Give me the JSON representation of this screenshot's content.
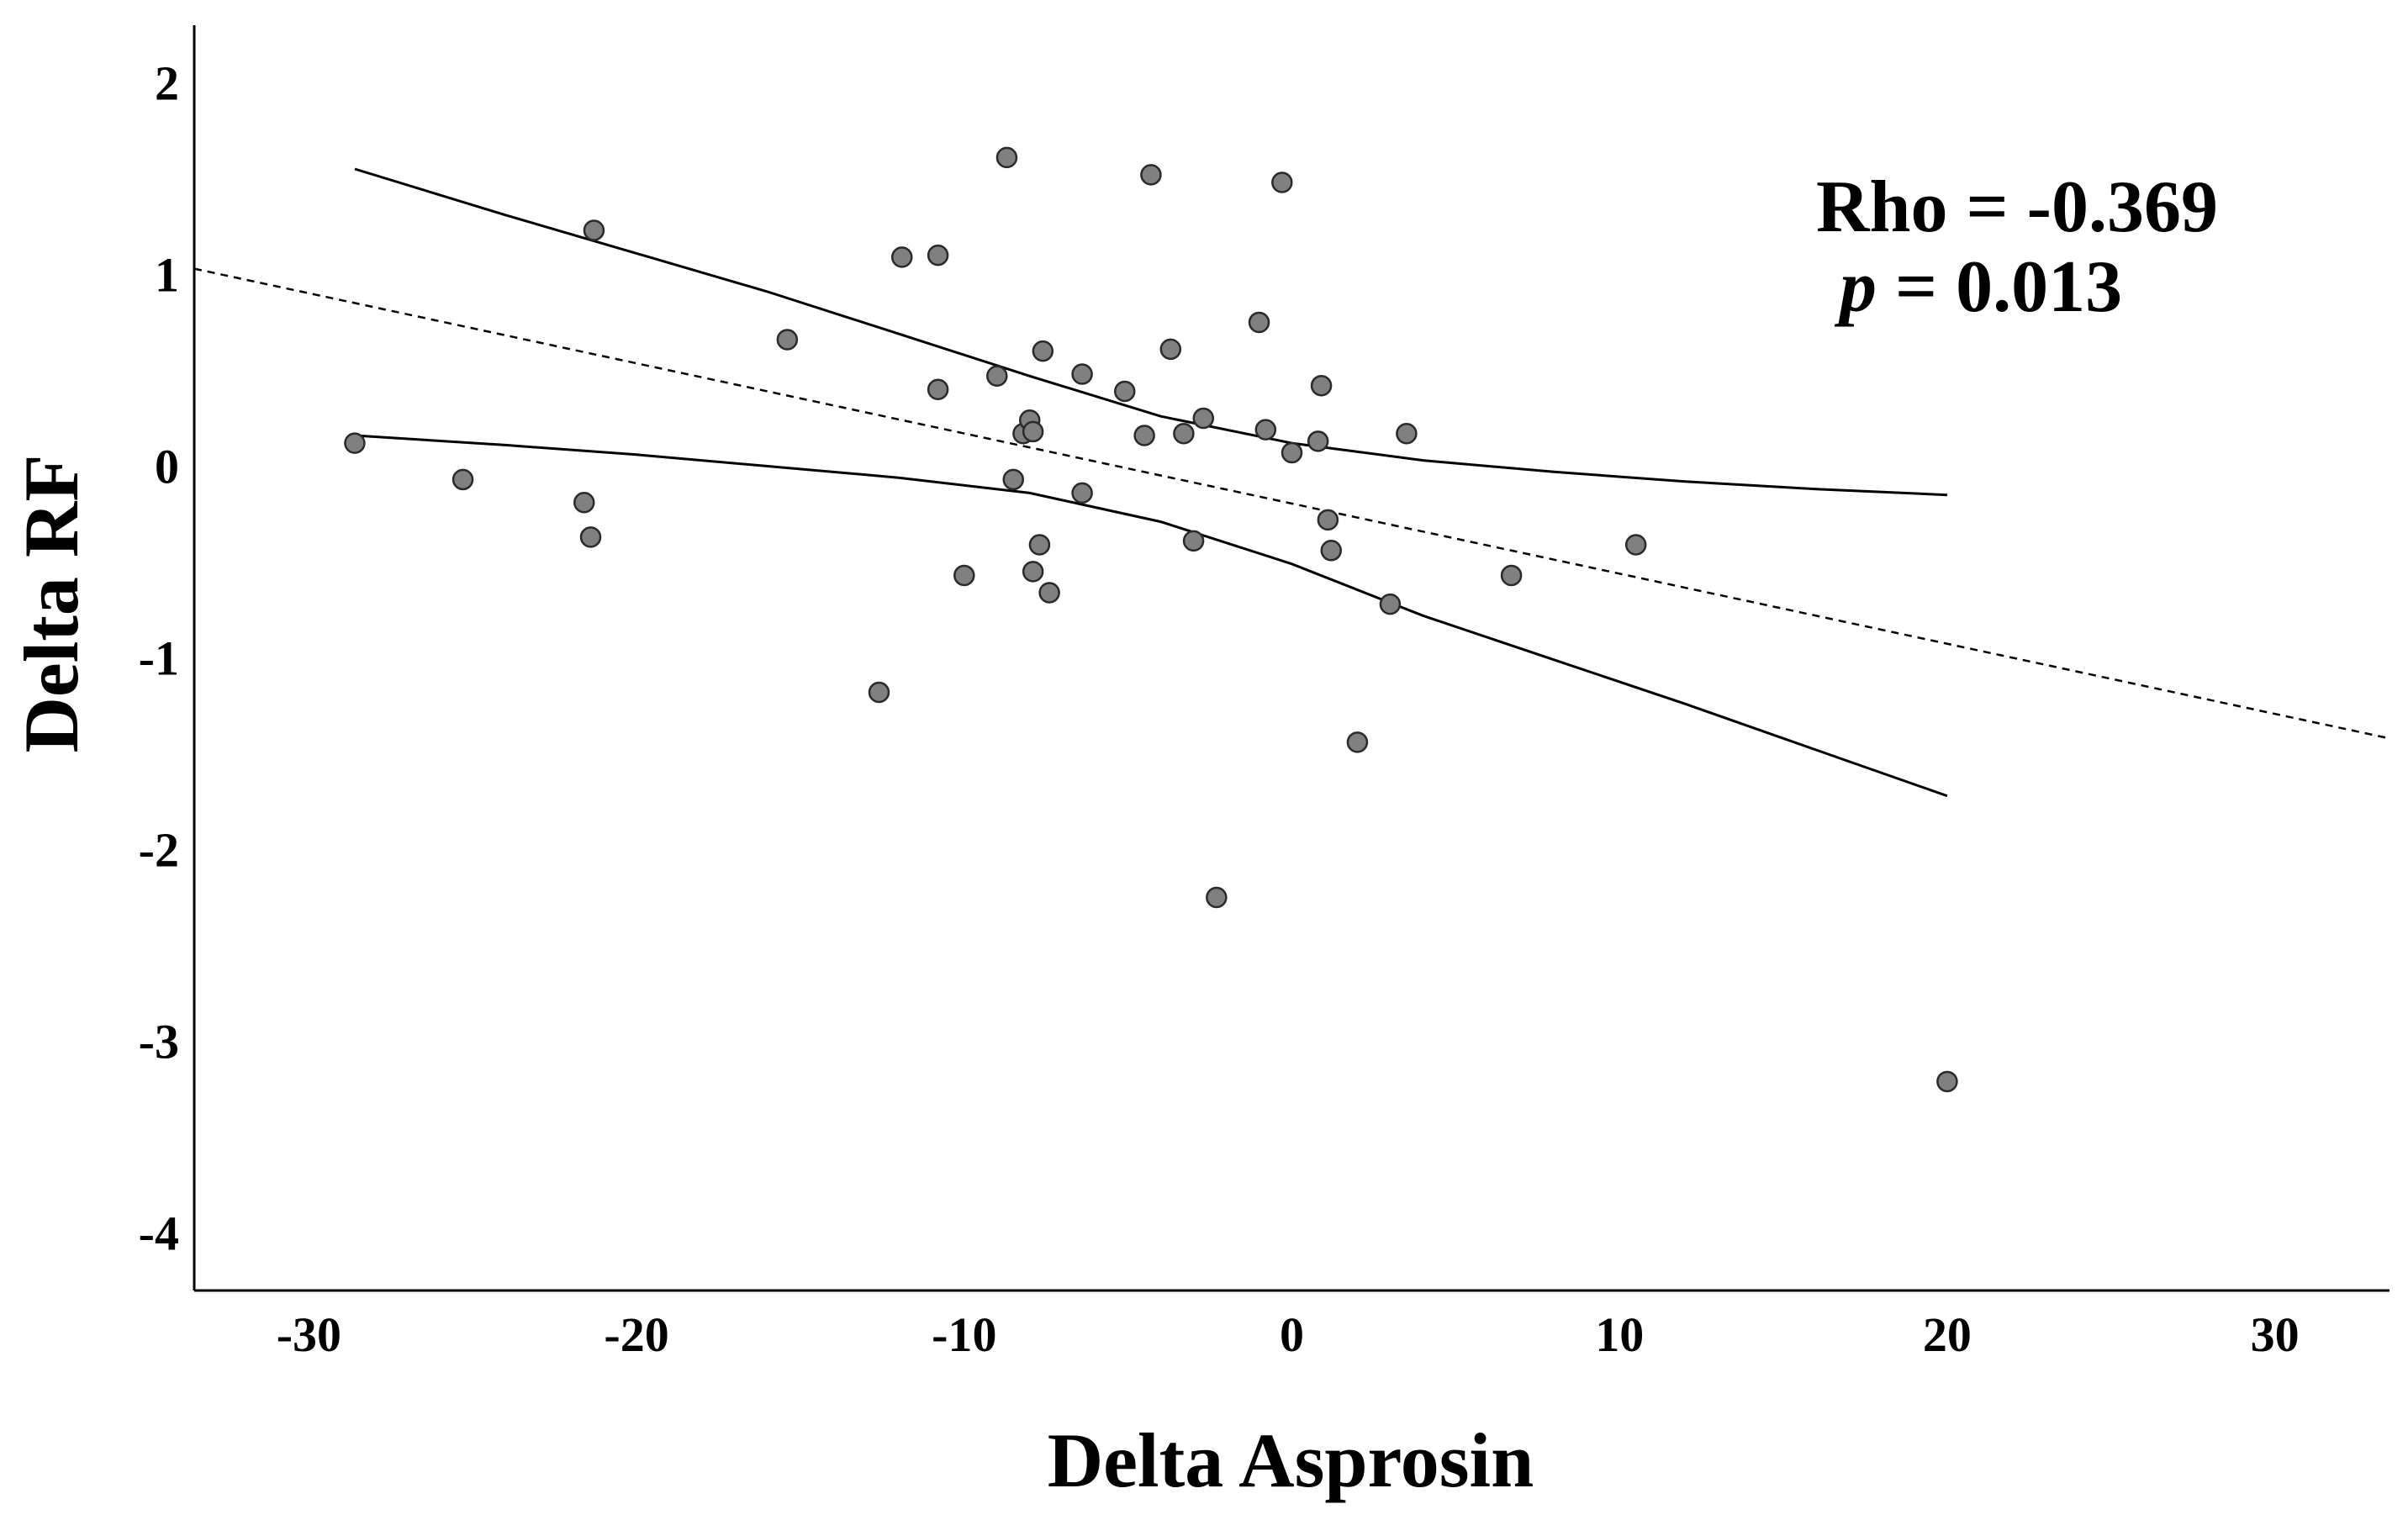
{
  "chart_data": {
    "type": "scatter",
    "title": "",
    "xlabel": "Delta Asprosin",
    "ylabel": "Delta RF",
    "xlim": [
      -33.5,
      33.5
    ],
    "ylim": [
      -4.3,
      2.3
    ],
    "xticks": [
      -30,
      -20,
      -10,
      0,
      10,
      20,
      30
    ],
    "yticks": [
      2,
      1,
      0,
      -1,
      -2,
      -3,
      -4
    ],
    "xtick_labels": [
      "-30",
      "-20",
      "-10",
      "0",
      "10",
      "20",
      "30"
    ],
    "ytick_labels": [
      "2",
      "1",
      "0",
      "-1",
      "-2",
      "-3",
      "-4"
    ],
    "grid": false,
    "legend": "none",
    "colors": {
      "point_fill": "#808080",
      "point_stroke": "#2a2a2a",
      "line": "#000000"
    },
    "annotations": {
      "rho_text": "Rho = -0.369",
      "p_symbol": "p",
      "p_value_text": " = 0.013"
    },
    "points": [
      {
        "x": -28.6,
        "y": 0.12
      },
      {
        "x": -25.3,
        "y": -0.07
      },
      {
        "x": -21.6,
        "y": -0.19
      },
      {
        "x": -21.4,
        "y": -0.37
      },
      {
        "x": -21.3,
        "y": 1.23
      },
      {
        "x": -15.4,
        "y": 0.66
      },
      {
        "x": -12.6,
        "y": -1.18
      },
      {
        "x": -11.9,
        "y": 1.09
      },
      {
        "x": -10.8,
        "y": 1.1
      },
      {
        "x": -10.8,
        "y": 0.4
      },
      {
        "x": -10.0,
        "y": -0.57
      },
      {
        "x": -9.0,
        "y": 0.47
      },
      {
        "x": -8.7,
        "y": 1.61
      },
      {
        "x": -8.5,
        "y": -0.07
      },
      {
        "x": -8.2,
        "y": 0.17
      },
      {
        "x": -8.0,
        "y": 0.24
      },
      {
        "x": -7.9,
        "y": 0.18
      },
      {
        "x": -7.9,
        "y": -0.55
      },
      {
        "x": -7.7,
        "y": -0.41
      },
      {
        "x": -7.6,
        "y": 0.6
      },
      {
        "x": -7.4,
        "y": -0.66
      },
      {
        "x": -6.4,
        "y": -0.14
      },
      {
        "x": -6.4,
        "y": 0.48
      },
      {
        "x": -5.1,
        "y": 0.39
      },
      {
        "x": -4.5,
        "y": 0.16
      },
      {
        "x": -4.3,
        "y": 1.52
      },
      {
        "x": -3.7,
        "y": 0.61
      },
      {
        "x": -3.3,
        "y": 0.17
      },
      {
        "x": -3.0,
        "y": -0.39
      },
      {
        "x": -2.7,
        "y": 0.25
      },
      {
        "x": -2.3,
        "y": -2.25
      },
      {
        "x": -1.0,
        "y": 0.75
      },
      {
        "x": -0.8,
        "y": 0.19
      },
      {
        "x": -0.3,
        "y": 1.48
      },
      {
        "x": 0.0,
        "y": 0.07
      },
      {
        "x": 0.8,
        "y": 0.13
      },
      {
        "x": 0.9,
        "y": 0.42
      },
      {
        "x": 1.1,
        "y": -0.28
      },
      {
        "x": 1.2,
        "y": -0.44
      },
      {
        "x": 2.0,
        "y": -1.44
      },
      {
        "x": 3.0,
        "y": -0.72
      },
      {
        "x": 3.5,
        "y": 0.17
      },
      {
        "x": 6.7,
        "y": -0.57
      },
      {
        "x": 10.5,
        "y": -0.41
      },
      {
        "x": 20.0,
        "y": -3.21
      }
    ],
    "series": [
      {
        "name": "fit",
        "style": "dashed",
        "x": [
          -33.5,
          33.5
        ],
        "y": [
          1.03,
          -1.42
        ]
      },
      {
        "name": "ci-upper",
        "style": "solid",
        "x": [
          -28.6,
          -24,
          -20,
          -16,
          -12,
          -8,
          -4,
          0,
          4,
          8,
          12,
          16,
          20.0
        ],
        "y": [
          1.55,
          1.31,
          1.11,
          0.91,
          0.69,
          0.47,
          0.26,
          0.12,
          0.03,
          -0.03,
          -0.08,
          -0.12,
          -0.15
        ]
      },
      {
        "name": "ci-lower",
        "style": "solid",
        "x": [
          -28.6,
          -24,
          -20,
          -16,
          -12,
          -8,
          -4,
          0,
          4,
          8,
          12,
          16,
          20.0
        ],
        "y": [
          0.16,
          0.11,
          0.06,
          0.0,
          -0.06,
          -0.14,
          -0.29,
          -0.51,
          -0.78,
          -1.01,
          -1.24,
          -1.48,
          -1.72
        ]
      }
    ]
  }
}
